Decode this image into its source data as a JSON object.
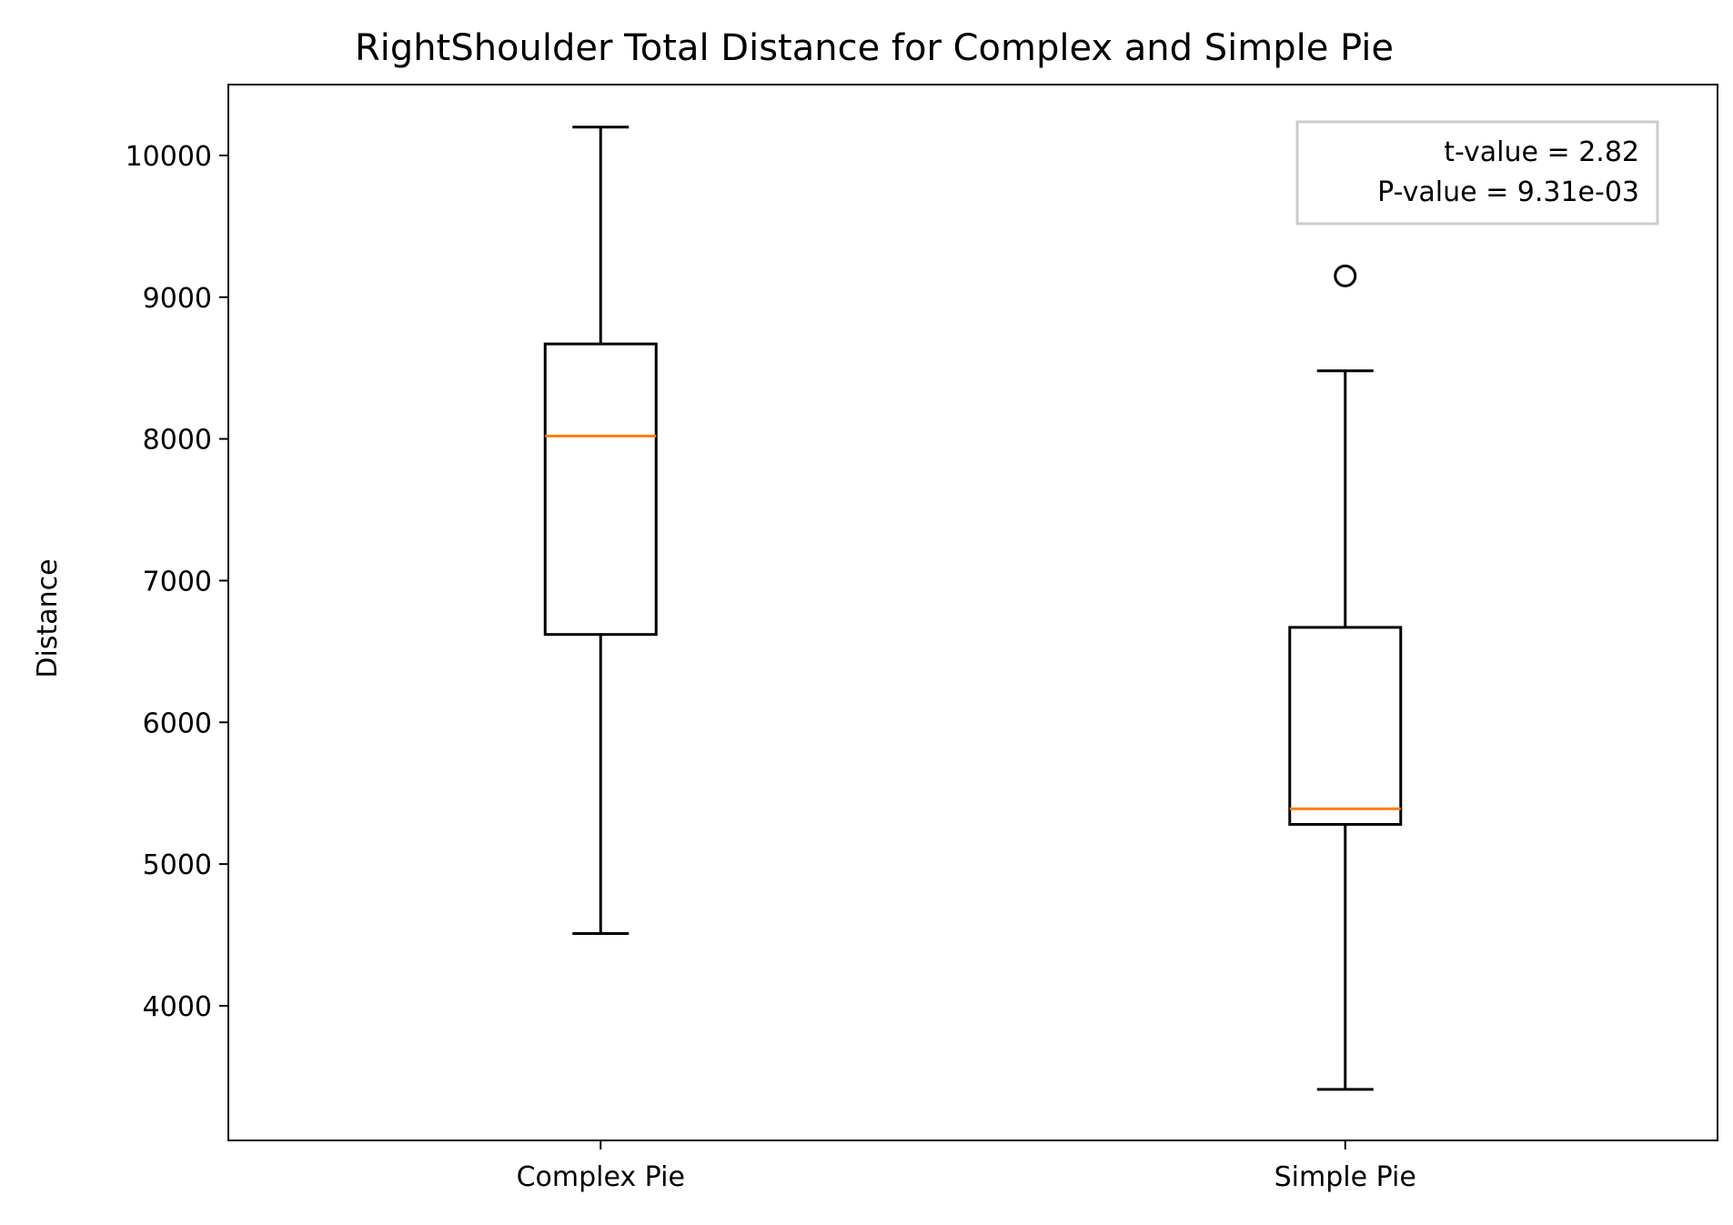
{
  "chart_data": {
    "type": "box",
    "title": "RightShoulder Total Distance for Complex and Simple Pie",
    "xlabel": "",
    "ylabel": "Distance",
    "ylim": [
      3050,
      10500
    ],
    "yticks": [
      4000,
      5000,
      6000,
      7000,
      8000,
      9000,
      10000
    ],
    "grid": false,
    "categories": [
      "Complex Pie",
      "Simple Pie"
    ],
    "boxes": [
      {
        "label": "Complex Pie",
        "whisker_low": 4510,
        "q1": 6620,
        "median": 8020,
        "q3": 8670,
        "whisker_high": 10200,
        "outliers": []
      },
      {
        "label": "Simple Pie",
        "whisker_low": 3410,
        "q1": 5280,
        "median": 5390,
        "q3": 6670,
        "whisker_high": 8480,
        "outliers": [
          9150
        ]
      }
    ],
    "annotation": {
      "lines": [
        "t-value = 2.82",
        "P-value = 9.31e-03"
      ],
      "placement": "top-right"
    },
    "colors": {
      "box": "#000000",
      "median": "#ff7f0e",
      "annotation_border": "#cccccc"
    }
  }
}
